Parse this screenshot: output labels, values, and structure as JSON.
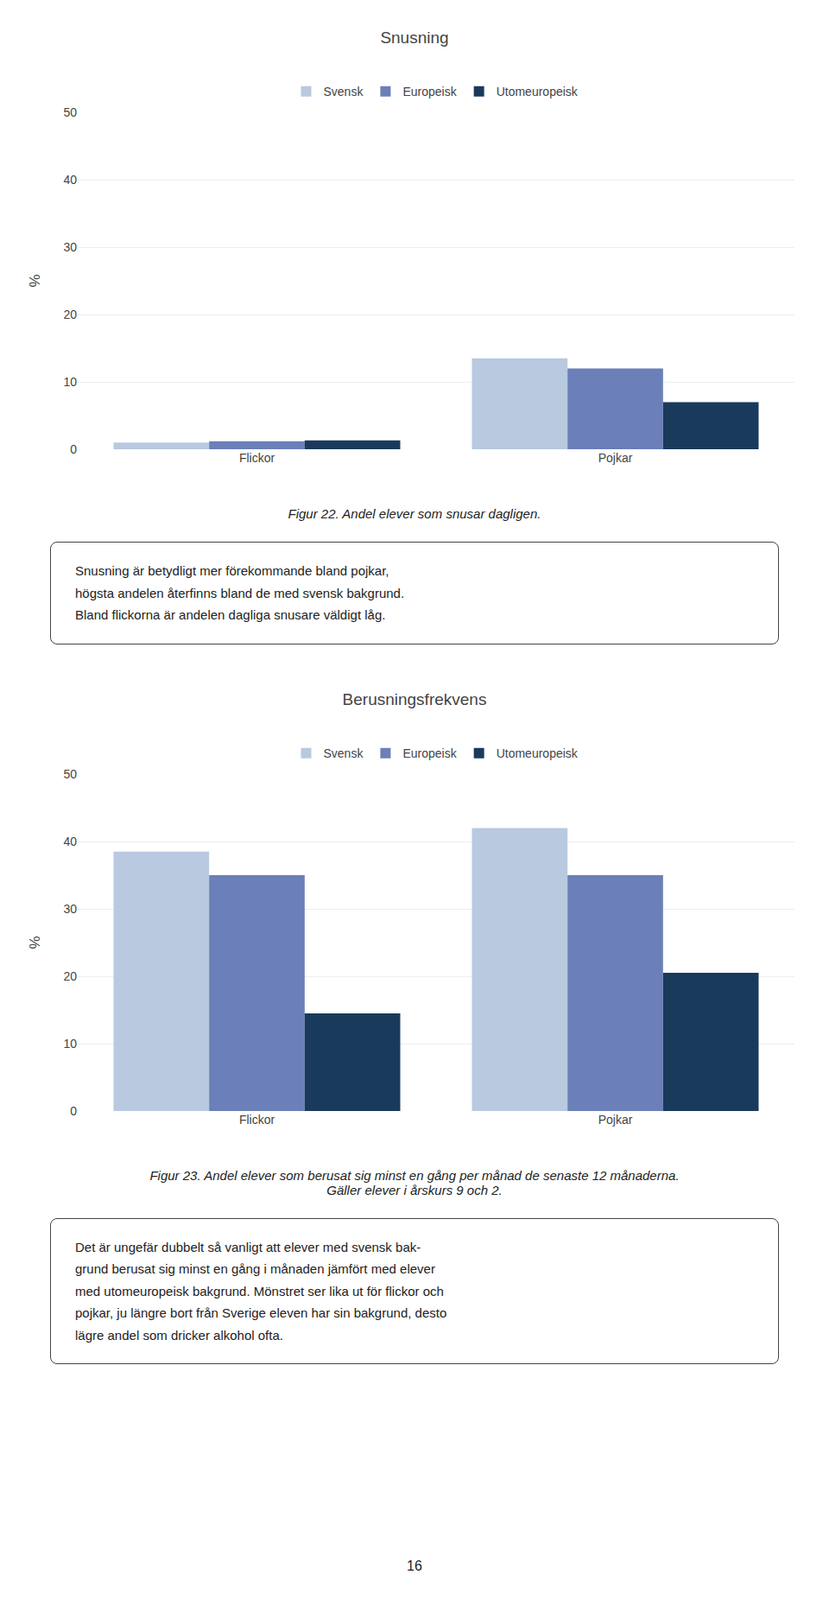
{
  "chart_data": [
    {
      "type": "bar",
      "title": "Snusning",
      "categories": [
        "Flickor",
        "Pojkar"
      ],
      "series": [
        {
          "name": "Svensk",
          "color": "#b8c9e0",
          "values": [
            1.0,
            13.5
          ]
        },
        {
          "name": "Europeisk",
          "color": "#6b7fb8",
          "values": [
            1.2,
            12.0
          ]
        },
        {
          "name": "Utomeuropeisk",
          "color": "#1a3a5c",
          "values": [
            1.3,
            7.0
          ]
        }
      ],
      "ylabel": "%",
      "ylim": [
        0,
        50
      ],
      "yticks": [
        0,
        10,
        20,
        30,
        40,
        50
      ],
      "grid": true,
      "legend": "top",
      "caption": "Figur 22. Andel elever som snusar dagligen.",
      "annotations": [
        "Snusning är betydligt mer förekommande bland pojkar,\nhögsta andelen återfinns bland de med svensk bakgrund.\nBland flickorna är andelen dagliga snusare väldigt låg."
      ]
    },
    {
      "type": "bar",
      "title": "Berusningsfrekvens",
      "categories": [
        "Flickor",
        "Pojkar"
      ],
      "series": [
        {
          "name": "Svensk",
          "color": "#b8c9e0",
          "values": [
            38.5,
            42.0
          ]
        },
        {
          "name": "Europeisk",
          "color": "#6b7fb8",
          "values": [
            35.0,
            35.0
          ]
        },
        {
          "name": "Utomeuropeisk",
          "color": "#1a3a5c",
          "values": [
            14.5,
            20.5
          ]
        }
      ],
      "ylabel": "%",
      "ylim": [
        0,
        50
      ],
      "yticks": [
        0,
        10,
        20,
        30,
        40,
        50
      ],
      "grid": true,
      "legend": "top",
      "caption": "Figur 23. Andel elever som berusat sig minst en gång per månad de senaste 12 månaderna.\nGäller elever i årskurs 9 och 2.",
      "annotations": [
        "Det är ungefär dubbelt så vanligt att elever med svensk bak-\ngrund berusat sig minst en gång i månaden jämfört med elever\nmed utomeuropeisk bakgrund. Mönstret ser lika ut för flickor och\npojkar, ju längre bort från Sverige eleven har sin bakgrund, desto\nlägre andel som dricker alkohol ofta."
      ]
    }
  ],
  "page_number": "16"
}
